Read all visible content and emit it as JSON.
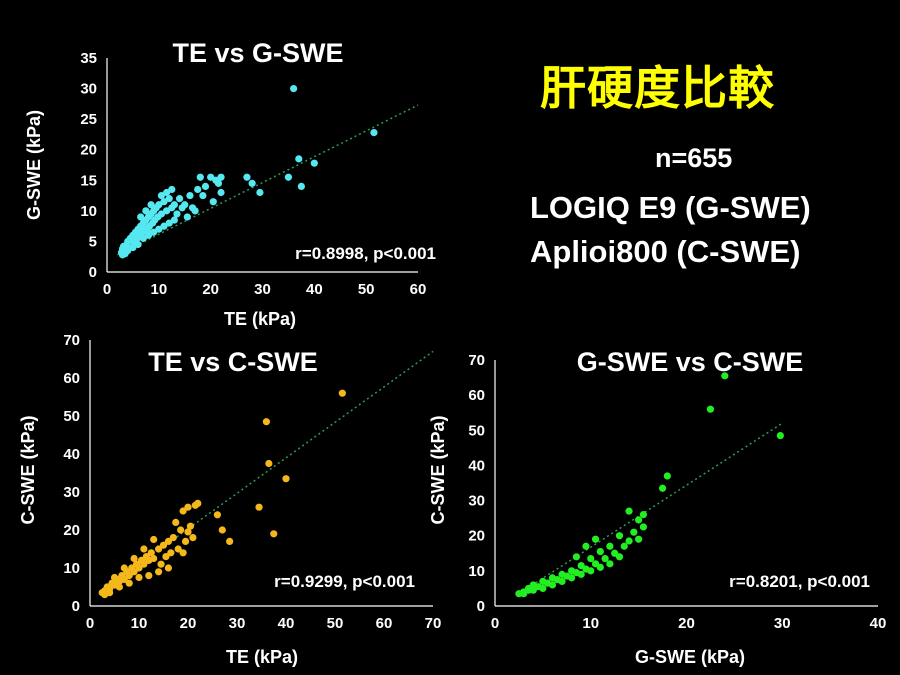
{
  "slide": {
    "title": "肝硬度比較",
    "n_label": "n=655",
    "device1": "LOGIQ E9 (G-SWE)",
    "device2": "Aplioi800 (C-SWE)"
  },
  "chart_data": [
    {
      "type": "scatter",
      "title": "TE vs G-SWE",
      "xlabel": "TE (kPa)",
      "ylabel": "G-SWE (kPa)",
      "xlim": [
        0,
        60
      ],
      "ylim": [
        0,
        35
      ],
      "xticks": [
        0,
        10,
        20,
        30,
        40,
        50,
        60
      ],
      "yticks": [
        0,
        5,
        10,
        15,
        20,
        25,
        30,
        35
      ],
      "annotation": "r=0.8998, p<0.001",
      "color": "#55e8f0",
      "trendline": {
        "x": [
          2,
          60
        ],
        "y": [
          2.8,
          27.3
        ]
      },
      "points": [
        [
          2.8,
          3.2
        ],
        [
          3.0,
          3.8
        ],
        [
          3.2,
          4.2
        ],
        [
          3.5,
          3.5
        ],
        [
          3.8,
          4.5
        ],
        [
          4.0,
          5.0
        ],
        [
          4.2,
          4.0
        ],
        [
          4.5,
          5.5
        ],
        [
          4.8,
          5.2
        ],
        [
          5.0,
          6.0
        ],
        [
          5.2,
          4.8
        ],
        [
          5.5,
          6.5
        ],
        [
          5.8,
          5.5
        ],
        [
          6.0,
          7.0
        ],
        [
          6.2,
          6.0
        ],
        [
          6.5,
          7.5
        ],
        [
          6.8,
          6.5
        ],
        [
          7.0,
          8.0
        ],
        [
          7.2,
          7.0
        ],
        [
          7.5,
          8.5
        ],
        [
          7.8,
          6.8
        ],
        [
          8.0,
          9.0
        ],
        [
          8.2,
          7.5
        ],
        [
          8.5,
          9.5
        ],
        [
          8.8,
          8.0
        ],
        [
          9.0,
          10.0
        ],
        [
          9.2,
          8.5
        ],
        [
          9.5,
          10.5
        ],
        [
          9.8,
          9.0
        ],
        [
          10.0,
          11.0
        ],
        [
          10.5,
          9.5
        ],
        [
          11.0,
          11.5
        ],
        [
          11.5,
          10.0
        ],
        [
          12.0,
          12.0
        ],
        [
          12.5,
          10.5
        ],
        [
          13.0,
          11.0
        ],
        [
          13.5,
          9.5
        ],
        [
          14.0,
          12.0
        ],
        [
          14.5,
          10.5
        ],
        [
          15.0,
          11.0
        ],
        [
          16.0,
          12.5
        ],
        [
          17.0,
          10.0
        ],
        [
          17.5,
          13.5
        ],
        [
          18.0,
          15.5
        ],
        [
          18.5,
          12.5
        ],
        [
          19.0,
          14.0
        ],
        [
          20.0,
          15.5
        ],
        [
          21.0,
          15.0
        ],
        [
          21.5,
          14.5
        ],
        [
          22.0,
          15.5
        ],
        [
          22.0,
          13.0
        ],
        [
          20.5,
          11.5
        ],
        [
          16.5,
          10.5
        ],
        [
          15.5,
          9.0
        ],
        [
          13.0,
          8.5
        ],
        [
          12.0,
          8.0
        ],
        [
          11.0,
          7.5
        ],
        [
          10.0,
          7.0
        ],
        [
          9.0,
          6.5
        ],
        [
          8.0,
          6.0
        ],
        [
          7.0,
          5.5
        ],
        [
          6.0,
          4.5
        ],
        [
          5.0,
          4.0
        ],
        [
          4.0,
          3.5
        ],
        [
          3.5,
          3.0
        ],
        [
          3.0,
          2.8
        ],
        [
          6.5,
          9.0
        ],
        [
          7.5,
          10.0
        ],
        [
          8.5,
          11.0
        ],
        [
          10.5,
          12.5
        ],
        [
          11.5,
          13.0
        ],
        [
          12.5,
          13.5
        ],
        [
          27.0,
          15.5
        ],
        [
          28.0,
          14.5
        ],
        [
          29.5,
          13.0
        ],
        [
          35.0,
          15.5
        ],
        [
          36.0,
          30.0
        ],
        [
          37.0,
          18.5
        ],
        [
          37.5,
          14.0
        ],
        [
          40.0,
          17.8
        ],
        [
          51.5,
          22.8
        ]
      ]
    },
    {
      "type": "scatter",
      "title": "TE vs C-SWE",
      "xlabel": "TE (kPa)",
      "ylabel": "C-SWE (kPa)",
      "xlim": [
        0,
        70
      ],
      "ylim": [
        0,
        70
      ],
      "xticks": [
        0,
        10,
        20,
        30,
        40,
        50,
        60,
        70
      ],
      "yticks": [
        0,
        10,
        20,
        30,
        40,
        50,
        60,
        70
      ],
      "annotation": "r=0.9299, p<0.001",
      "color": "#f5b81c",
      "trendline": {
        "x": [
          2,
          70
        ],
        "y": [
          3.5,
          67
        ]
      },
      "points": [
        [
          2.5,
          3.5
        ],
        [
          3.0,
          4.0
        ],
        [
          3.5,
          5.0
        ],
        [
          4.0,
          4.5
        ],
        [
          4.5,
          6.0
        ],
        [
          5.0,
          5.5
        ],
        [
          5.5,
          7.0
        ],
        [
          6.0,
          6.5
        ],
        [
          6.5,
          8.0
        ],
        [
          7.0,
          7.0
        ],
        [
          7.5,
          9.0
        ],
        [
          8.0,
          8.0
        ],
        [
          8.5,
          10.0
        ],
        [
          9.0,
          9.0
        ],
        [
          9.5,
          11.0
        ],
        [
          10.0,
          10.0
        ],
        [
          10.5,
          12.0
        ],
        [
          11.0,
          11.0
        ],
        [
          11.5,
          13.0
        ],
        [
          12.0,
          12.0
        ],
        [
          12.5,
          14.0
        ],
        [
          13.0,
          12.5
        ],
        [
          14.0,
          15.0
        ],
        [
          14.5,
          11.0
        ],
        [
          15.0,
          16.0
        ],
        [
          15.5,
          13.0
        ],
        [
          16.0,
          17.0
        ],
        [
          16.5,
          14.0
        ],
        [
          17.0,
          18.0
        ],
        [
          17.5,
          22.0
        ],
        [
          18.0,
          15.0
        ],
        [
          18.5,
          20.0
        ],
        [
          19.0,
          25.0
        ],
        [
          19.5,
          17.0
        ],
        [
          20.0,
          26.0
        ],
        [
          20.5,
          21.0
        ],
        [
          21.0,
          18.0
        ],
        [
          21.5,
          26.5
        ],
        [
          22.0,
          27.0
        ],
        [
          20.0,
          19.5
        ],
        [
          19.0,
          14.0
        ],
        [
          16.0,
          10.0
        ],
        [
          14.0,
          9.0
        ],
        [
          12.0,
          8.0
        ],
        [
          10.0,
          7.5
        ],
        [
          8.0,
          6.0
        ],
        [
          6.0,
          5.0
        ],
        [
          4.0,
          3.5
        ],
        [
          3.0,
          3.0
        ],
        [
          5.0,
          7.5
        ],
        [
          7.0,
          10.0
        ],
        [
          9.0,
          12.5
        ],
        [
          11.0,
          15.0
        ],
        [
          13.0,
          17.5
        ],
        [
          26.0,
          24.0
        ],
        [
          27.0,
          20.0
        ],
        [
          28.5,
          17.0
        ],
        [
          34.5,
          26.0
        ],
        [
          36.0,
          48.5
        ],
        [
          36.5,
          37.5
        ],
        [
          37.5,
          19.0
        ],
        [
          40.0,
          33.5
        ],
        [
          51.5,
          56.0
        ]
      ]
    },
    {
      "type": "scatter",
      "title": "G-SWE vs C-SWE",
      "xlabel": "G-SWE (kPa)",
      "ylabel": "C-SWE (kPa)",
      "xlim": [
        0,
        40
      ],
      "ylim": [
        0,
        70
      ],
      "xticks": [
        0,
        10,
        20,
        30,
        40
      ],
      "yticks": [
        0,
        10,
        20,
        30,
        40,
        50,
        60,
        70
      ],
      "annotation": "r=0.8201, p<0.001",
      "color": "#22ee22",
      "trendline": {
        "x": [
          2.5,
          30
        ],
        "y": [
          3.5,
          52
        ]
      },
      "points": [
        [
          2.5,
          3.5
        ],
        [
          3.0,
          4.0
        ],
        [
          3.5,
          5.0
        ],
        [
          4.0,
          4.5
        ],
        [
          4.5,
          5.5
        ],
        [
          5.0,
          5.0
        ],
        [
          5.5,
          6.5
        ],
        [
          6.0,
          6.0
        ],
        [
          6.5,
          7.5
        ],
        [
          7.0,
          7.0
        ],
        [
          7.5,
          8.5
        ],
        [
          8.0,
          8.0
        ],
        [
          8.5,
          9.5
        ],
        [
          9.0,
          9.0
        ],
        [
          9.5,
          10.5
        ],
        [
          10.0,
          10.0
        ],
        [
          10.5,
          12.0
        ],
        [
          11.0,
          11.0
        ],
        [
          11.5,
          13.5
        ],
        [
          12.0,
          12.0
        ],
        [
          12.5,
          15.0
        ],
        [
          13.0,
          14.0
        ],
        [
          13.5,
          17.0
        ],
        [
          14.0,
          18.5
        ],
        [
          14.5,
          21.0
        ],
        [
          15.0,
          19.0
        ],
        [
          15.5,
          22.5
        ],
        [
          15.5,
          26.0
        ],
        [
          15.0,
          24.5
        ],
        [
          14.0,
          27.0
        ],
        [
          13.0,
          20.0
        ],
        [
          12.0,
          17.0
        ],
        [
          11.0,
          15.5
        ],
        [
          10.0,
          13.5
        ],
        [
          9.0,
          11.5
        ],
        [
          8.0,
          10.0
        ],
        [
          7.0,
          9.0
        ],
        [
          6.0,
          8.0
        ],
        [
          5.0,
          7.0
        ],
        [
          4.0,
          6.0
        ],
        [
          3.5,
          4.5
        ],
        [
          3.0,
          3.5
        ],
        [
          9.5,
          17.0
        ],
        [
          10.5,
          19.0
        ],
        [
          8.5,
          14.0
        ],
        [
          17.5,
          33.5
        ],
        [
          18.0,
          37.0
        ],
        [
          22.5,
          56.0
        ],
        [
          24.0,
          65.5
        ],
        [
          29.8,
          48.5
        ]
      ]
    }
  ]
}
